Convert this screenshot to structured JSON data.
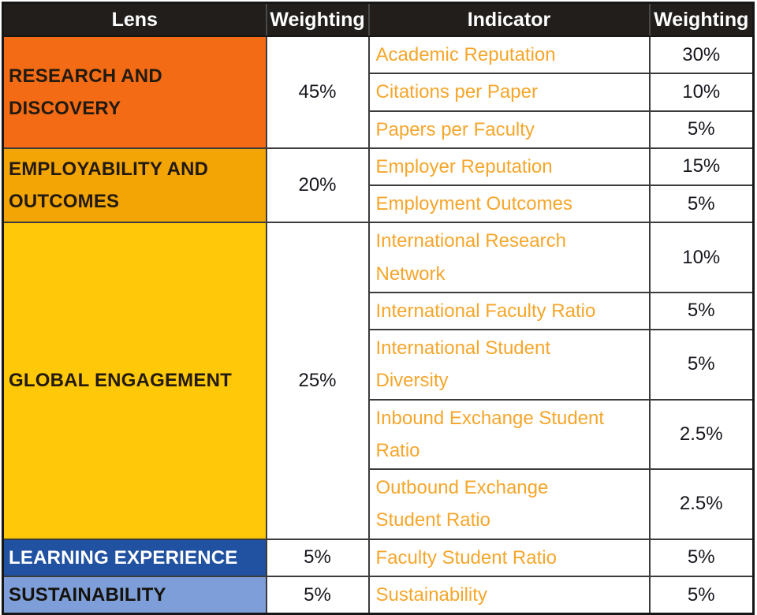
{
  "chart_data": {
    "type": "table",
    "columns": [
      "Lens",
      "Weighting",
      "Indicator",
      "Weighting"
    ],
    "sections": [
      {
        "lens": "RESEARCH AND\nDISCOVERY",
        "lens_bg": "#F36C15",
        "lens_color": "#221A10",
        "weighting": "45%",
        "indicators": [
          {
            "label": "Academic Reputation",
            "weighting": "30%"
          },
          {
            "label": "Citations per Paper",
            "weighting": "10%"
          },
          {
            "label": "Papers per Faculty",
            "weighting": "5%"
          }
        ]
      },
      {
        "lens": "EMPLOYABILITY AND\nOUTCOMES",
        "lens_bg": "#F3A506",
        "lens_color": "#221A10",
        "weighting": "20%",
        "indicators": [
          {
            "label": "Employer Reputation",
            "weighting": "15%"
          },
          {
            "label": "Employment Outcomes",
            "weighting": "5%"
          }
        ]
      },
      {
        "lens": "GLOBAL ENGAGEMENT",
        "lens_bg": "#FFC808",
        "lens_color": "#221A10",
        "weighting": "25%",
        "indicators": [
          {
            "label": "International Research\nNetwork",
            "weighting": "10%"
          },
          {
            "label": "International Faculty Ratio",
            "weighting": "5%"
          },
          {
            "label": "International Student\nDiversity",
            "weighting": "5%"
          },
          {
            "label": "Inbound Exchange Student\nRatio",
            "weighting": "2.5%"
          },
          {
            "label": "Outbound Exchange\nStudent Ratio",
            "weighting": "2.5%"
          }
        ]
      },
      {
        "lens": "LEARNING EXPERIENCE",
        "lens_bg": "#2151A1",
        "lens_color": "#FFFFFF",
        "weighting": "5%",
        "indicators": [
          {
            "label": "Faculty Student Ratio",
            "weighting": "5%"
          }
        ]
      },
      {
        "lens": "SUSTAINABILITY",
        "lens_bg": "#7D9ED8",
        "lens_color": "#15120C",
        "weighting": "5%",
        "indicators": [
          {
            "label": "Sustainability",
            "weighting": "5%"
          }
        ]
      }
    ],
    "colors": {
      "header_bg": "#211E1C",
      "header_text": "#FFFFFF",
      "indicator_text": "#F5A62B",
      "value_text": "#16161E",
      "grid_line": "#3B3B3B"
    }
  }
}
